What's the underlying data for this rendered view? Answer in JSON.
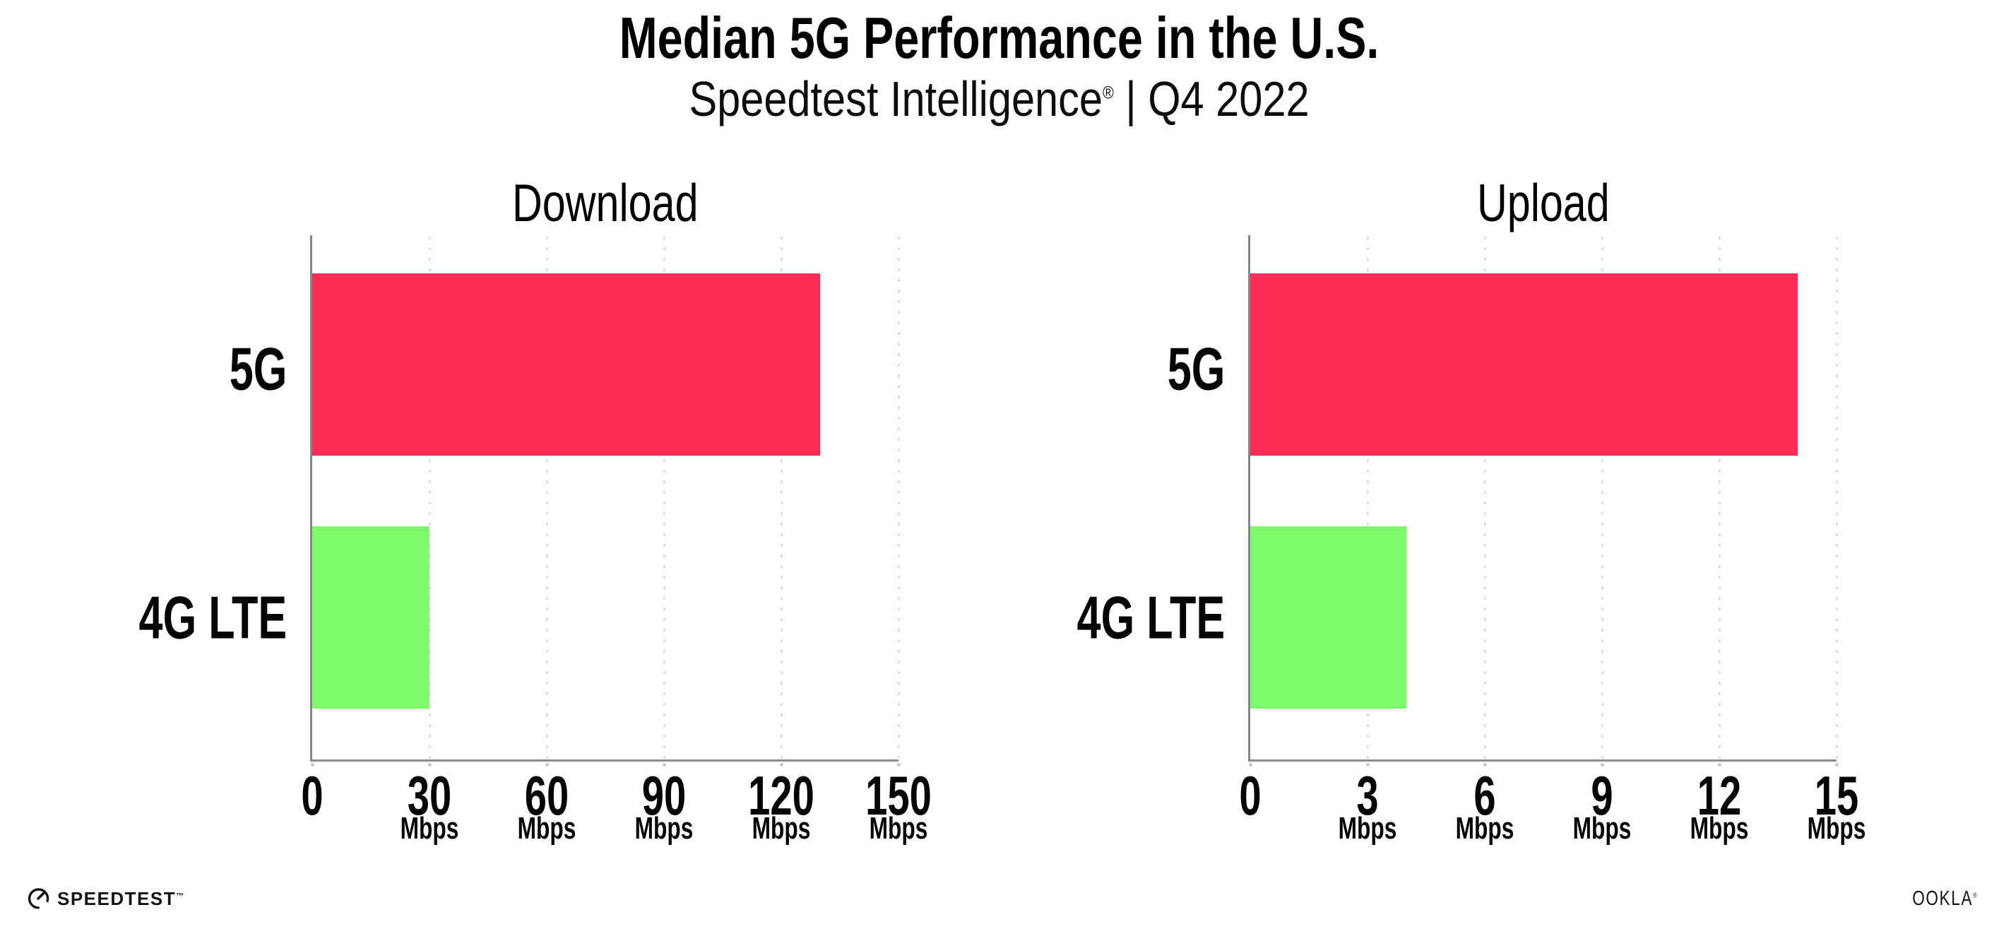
{
  "header": {
    "title": "Median 5G Performance in the U.S.",
    "subtitle_brand": "Speedtest Intelligence",
    "subtitle_reg": "®",
    "subtitle_rest": " | Q4 2022"
  },
  "chart_data": [
    {
      "type": "bar",
      "orientation": "horizontal",
      "title": "Download",
      "categories": [
        "5G",
        "4G LTE"
      ],
      "values": [
        130,
        30
      ],
      "unit": "Mbps",
      "xlim": [
        0,
        150
      ],
      "xticks": [
        0,
        30,
        60,
        90,
        120,
        150
      ],
      "bar_colors": [
        "#FF2D56",
        "#7DFB6B"
      ],
      "legend": "none",
      "grid": "vertical-dotted"
    },
    {
      "type": "bar",
      "orientation": "horizontal",
      "title": "Upload",
      "categories": [
        "5G",
        "4G LTE"
      ],
      "values": [
        14,
        4
      ],
      "unit": "Mbps",
      "xlim": [
        0,
        15
      ],
      "xticks": [
        0,
        3,
        6,
        9,
        12,
        15
      ],
      "bar_colors": [
        "#FF2D56",
        "#7DFB6B"
      ],
      "legend": "none",
      "grid": "vertical-dotted"
    }
  ],
  "colors": {
    "bar_5g": "#FF2D56",
    "bar_4g_lte": "#7DFB6B",
    "gridline": "#DCDCEA",
    "axis": "#8C8C8C",
    "text": "#0A0A0A",
    "background": "#FFFFFF"
  },
  "footer": {
    "speedtest_label": "SPEEDTEST",
    "speedtest_tm": "™",
    "ookla_label": "OOKLA",
    "ookla_reg": "®"
  }
}
